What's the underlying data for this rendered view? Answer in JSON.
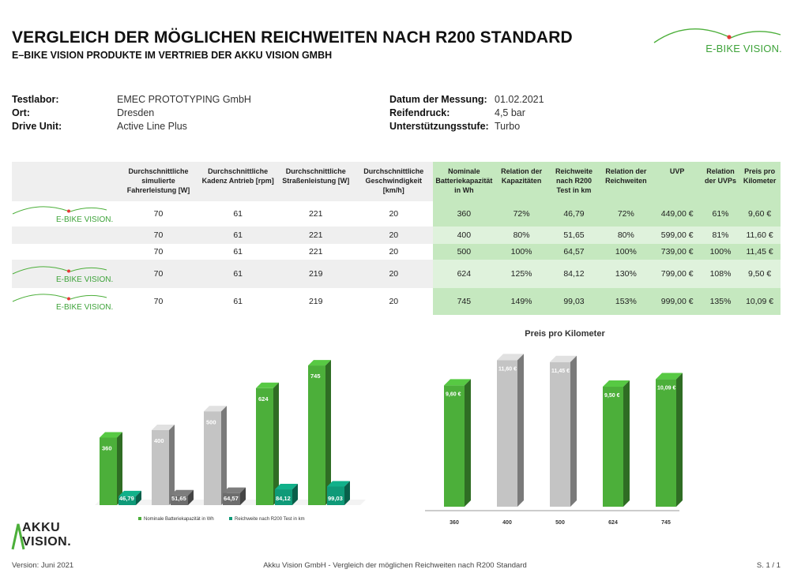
{
  "header": {
    "title": "VERGLEICH DER MÖGLICHEN REICHWEITEN NACH R200 STANDARD",
    "subtitle": "E–BIKE VISION PRODUKTE IM VERTRIEB DER AKKU VISION GMBH",
    "logo_text": "E-BIKE VISION."
  },
  "meta_left": [
    {
      "key": "Testlabor:",
      "value": "EMEC PROTOTYPING GmbH"
    },
    {
      "key": "Ort:",
      "value": "Dresden"
    },
    {
      "key": "Drive Unit:",
      "value": "Active Line Plus"
    }
  ],
  "meta_right": [
    {
      "key": "Datum der Messung:",
      "value": "01.02.2021"
    },
    {
      "key": "Reifendruck:",
      "value": "4,5 bar"
    },
    {
      "key": "Unterstützungsstufe:",
      "value": "Turbo"
    }
  ],
  "table": {
    "headers": [
      "Durchschnittliche simulierte Fahrerleistung [W]",
      "Durchschnittliche Kadenz Antrieb [rpm]",
      "Durchschnittliche Straßenleistung [W]",
      "Durchschnittliche Geschwindigkeit [km/h]",
      "Nominale Batteriekapazität in Wh",
      "Relation der Kapazitäten",
      "Reichweite nach R200 Test in km",
      "Relation der Reichweiten",
      "UVP",
      "Relation der UVPs",
      "Preis pro Kilometer"
    ],
    "rows": [
      {
        "logo": "E-BIKE VISION.",
        "cells": [
          "70",
          "61",
          "221",
          "20",
          "360",
          "72%",
          "46,79",
          "72%",
          "449,00 €",
          "61%",
          "9,60 €"
        ]
      },
      {
        "logo": "",
        "cells": [
          "70",
          "61",
          "221",
          "20",
          "400",
          "80%",
          "51,65",
          "80%",
          "599,00 €",
          "81%",
          "11,60 €"
        ]
      },
      {
        "logo": "",
        "cells": [
          "70",
          "61",
          "221",
          "20",
          "500",
          "100%",
          "64,57",
          "100%",
          "739,00 €",
          "100%",
          "11,45 €"
        ]
      },
      {
        "logo": "E-BIKE VISION.",
        "cells": [
          "70",
          "61",
          "219",
          "20",
          "624",
          "125%",
          "84,12",
          "130%",
          "799,00 €",
          "108%",
          "9,50 €"
        ]
      },
      {
        "logo": "E-BIKE VISION.",
        "cells": [
          "70",
          "61",
          "219",
          "20",
          "745",
          "149%",
          "99,03",
          "153%",
          "999,00 €",
          "135%",
          "10,09 €"
        ]
      }
    ]
  },
  "colors": {
    "green": "#4caf3a",
    "grey": "#c4c4c4",
    "teal": "#0f9a78",
    "table_green": "#c5e8bf"
  },
  "chart_data": [
    {
      "type": "bar",
      "title": "",
      "categories": [
        "360",
        "400",
        "500",
        "624",
        "745"
      ],
      "series": [
        {
          "name": "Nominale Batteriekapazität in Wh",
          "values": [
            360,
            400,
            500,
            624,
            745
          ],
          "labels": [
            "360",
            "400",
            "500",
            "624",
            "745"
          ]
        },
        {
          "name": "Reichweite nach R200 Test in km",
          "values": [
            46.79,
            51.65,
            64.57,
            84.12,
            99.03
          ],
          "labels": [
            "46,79",
            "51,65",
            "64,57",
            "84,12",
            "99,03"
          ]
        }
      ],
      "show_category_labels": false,
      "ylim": [
        0,
        800
      ],
      "legend": "bottom",
      "grid": false
    },
    {
      "type": "bar",
      "title": "Preis pro Kilometer",
      "categories": [
        "360",
        "400",
        "500",
        "624",
        "745"
      ],
      "values": [
        9.6,
        11.6,
        11.45,
        9.5,
        10.09
      ],
      "labels": [
        "9,60 €",
        "11,60 €",
        "11,45 €",
        "9,50 €",
        "10,09 €"
      ],
      "ylim": [
        0,
        12
      ],
      "grid": false
    }
  ],
  "bottom_logo": {
    "line1": "AKKU",
    "line2": "VISION."
  },
  "footer": {
    "version": "Version: Juni 2021",
    "center": "Akku Vision GmbH - Vergleich der möglichen Reichweiten nach R200 Standard",
    "page": "S. 1 / 1"
  }
}
